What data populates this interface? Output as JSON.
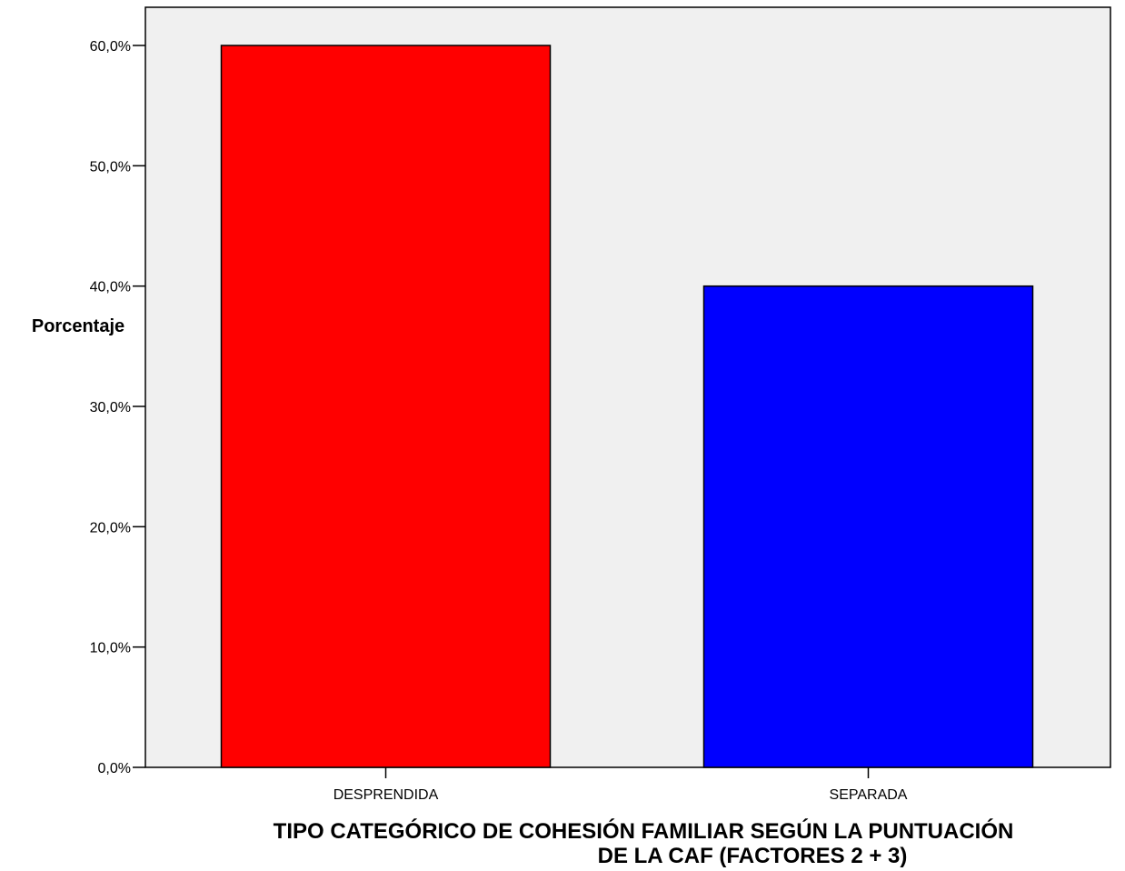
{
  "chart_data": {
    "type": "bar",
    "categories": [
      "DESPRENDIDA",
      "SEPARADA"
    ],
    "values": [
      60.0,
      40.0
    ],
    "colors": [
      "#ff0000",
      "#0000ff"
    ],
    "ylabel": "Porcentaje",
    "xlabel_lines": [
      "TIPO CATEGÓRICO DE COHESIÓN FAMILIAR SEGÚN LA PUNTUACIÓN",
      "DE LA CAF (FACTORES 2 + 3)"
    ],
    "ylim": [
      0,
      60
    ],
    "yticks": [
      0,
      10,
      20,
      30,
      40,
      50,
      60
    ],
    "ytick_labels": [
      "0,0%",
      "10,0%",
      "20,0%",
      "30,0%",
      "40,0%",
      "50,0%",
      "60,0%"
    ],
    "plot_background": "#f0f0f0",
    "grid": false,
    "legend": "none"
  }
}
